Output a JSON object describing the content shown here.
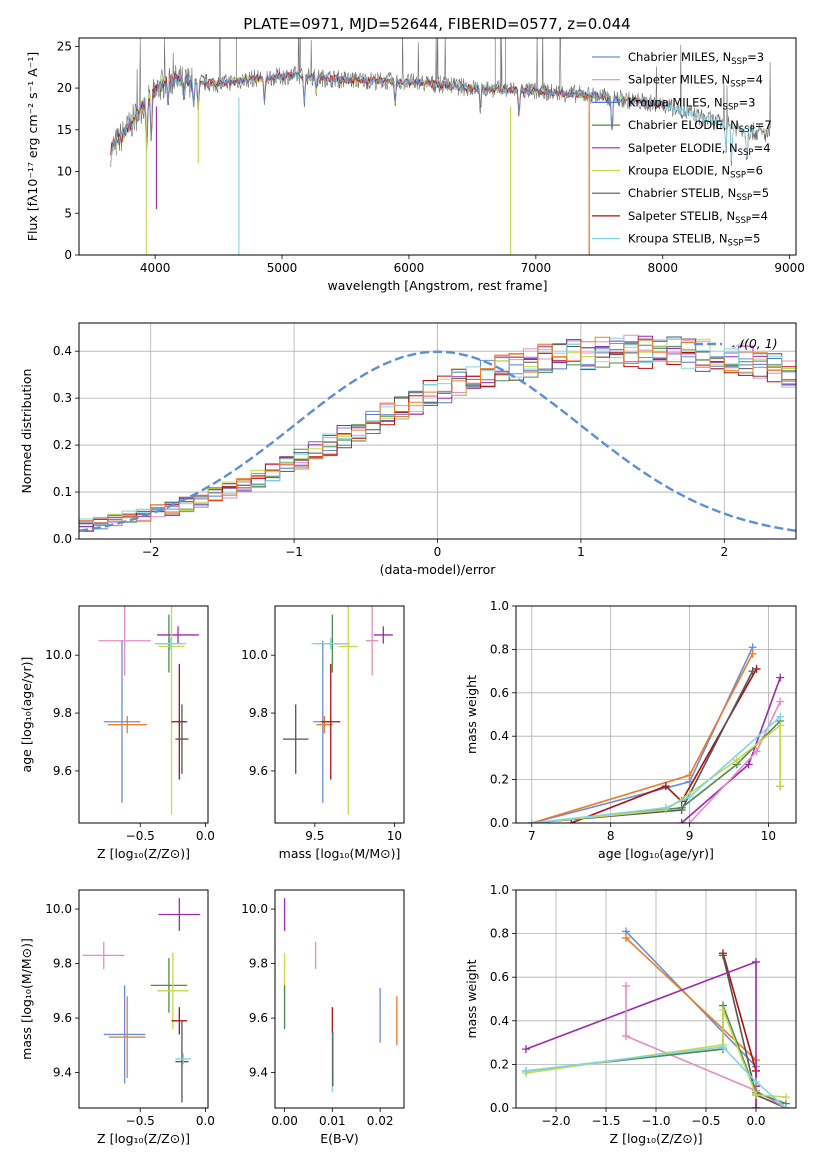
{
  "figure_title": "PLATE=0971, MJD=52644, FIBERID=0577, z=0.044",
  "colors": {
    "chabrier_miles": "#6a8fd6",
    "salpeter_miles": "#e58ec2",
    "kroupa_miles": "#5577cc",
    "chabrier_elodie": "#4f8a55",
    "salpeter_elodie": "#9b2ab0",
    "kroupa_elodie": "#c8d84a",
    "chabrier_stelib": "#555555",
    "salpeter_stelib": "#b01010",
    "kroupa_stelib": "#7ed6e6",
    "orange": "#ee7a2a",
    "gauss": "#5b8fd6"
  },
  "chart_data": [
    {
      "id": "spectrum",
      "type": "line",
      "title": "PLATE=0971, MJD=52644, FIBERID=0577, z=0.044",
      "xlabel": "wavelength [Angstrom, rest frame]",
      "ylabel": "Flux [fλ10⁻¹⁷ erg cm⁻² s⁻¹ A⁻¹]",
      "xlim": [
        3400,
        9050
      ],
      "ylim": [
        0,
        26
      ],
      "xticks": [
        4000,
        5000,
        6000,
        7000,
        8000,
        9000
      ],
      "yticks": [
        0,
        5,
        10,
        15,
        20,
        25
      ],
      "legend_position": "top-right",
      "legend": [
        {
          "label": "Chabrier MILES, N",
          "sub": "SSP",
          "suffix": "=3",
          "color_key": "chabrier_miles"
        },
        {
          "label": "Salpeter MILES, N",
          "sub": "SSP",
          "suffix": "=4",
          "color_key": "salpeter_miles"
        },
        {
          "label": "Kroupa MILES, N",
          "sub": "SSP",
          "suffix": "=3",
          "color_key": "kroupa_miles"
        },
        {
          "label": "Chabrier ELODIE, N",
          "sub": "SSP",
          "suffix": "=7",
          "color_key": "chabrier_elodie"
        },
        {
          "label": "Salpeter ELODIE, N",
          "sub": "SSP",
          "suffix": "=4",
          "color_key": "salpeter_elodie"
        },
        {
          "label": "Kroupa ELODIE, N",
          "sub": "SSP",
          "suffix": "=6",
          "color_key": "kroupa_elodie"
        },
        {
          "label": "Chabrier STELIB, N",
          "sub": "SSP",
          "suffix": "=5",
          "color_key": "chabrier_stelib"
        },
        {
          "label": "Salpeter STELIB, N",
          "sub": "SSP",
          "suffix": "=4",
          "color_key": "salpeter_stelib"
        },
        {
          "label": "Kroupa STELIB, N",
          "sub": "SSP",
          "suffix": "=5",
          "color_key": "kroupa_stelib"
        }
      ],
      "continuum": {
        "x": [
          3650,
          3800,
          3950,
          4100,
          4300,
          4500,
          4800,
          5100,
          5500,
          5900,
          6200,
          6500,
          6800,
          7100,
          7400,
          7700,
          8000,
          8200,
          8400,
          8600,
          8800
        ],
        "y": [
          12.5,
          15.5,
          19.0,
          21.0,
          20.8,
          20.5,
          21.2,
          21.5,
          21.0,
          20.8,
          20.5,
          20.0,
          19.8,
          19.5,
          19.2,
          18.6,
          18.0,
          17.0,
          16.0,
          15.2,
          14.5
        ]
      },
      "drops": [
        {
          "x": 3930,
          "y": 0,
          "color_key": "kroupa_elodie"
        },
        {
          "x": 4660,
          "y": 0,
          "color_key": "kroupa_stelib"
        },
        {
          "x": 6800,
          "y": 0,
          "color_key": "kroupa_elodie"
        },
        {
          "x": 7420,
          "y": 0,
          "color_key": "orange"
        },
        {
          "x": 4010,
          "y": 5.5,
          "color_key": "salpeter_elodie"
        },
        {
          "x": 4340,
          "y": 11.0,
          "color_key": "kroupa_elodie"
        }
      ]
    },
    {
      "id": "residuals",
      "type": "histogram",
      "xlabel": "(data-model)/error",
      "ylabel": "Normed distribution",
      "xlim": [
        -2.5,
        2.5
      ],
      "ylim": [
        0,
        0.46
      ],
      "xticks": [
        -2,
        -1,
        0,
        1,
        2
      ],
      "yticks": [
        0.0,
        0.1,
        0.2,
        0.3,
        0.4
      ],
      "grid": true,
      "legend_position": "top-right",
      "gaussian_label": "𝒩(0, 1)",
      "bin_edges_start": -2.5,
      "bin_width": 0.1,
      "base_values": [
        0.03,
        0.034,
        0.039,
        0.045,
        0.051,
        0.058,
        0.065,
        0.074,
        0.083,
        0.093,
        0.104,
        0.116,
        0.129,
        0.142,
        0.156,
        0.171,
        0.186,
        0.201,
        0.217,
        0.232,
        0.248,
        0.264,
        0.279,
        0.294,
        0.308,
        0.321,
        0.333,
        0.344,
        0.354,
        0.363,
        0.371,
        0.378,
        0.384,
        0.389,
        0.392,
        0.395,
        0.397,
        0.398,
        0.399,
        0.399,
        0.398,
        0.397,
        0.395,
        0.392,
        0.389,
        0.384,
        0.378,
        0.371,
        0.363,
        0.354,
        0.344,
        0.333,
        0.321,
        0.308,
        0.294,
        0.279,
        0.264,
        0.248,
        0.232,
        0.217,
        0.201,
        0.186,
        0.171,
        0.156,
        0.142,
        0.129,
        0.116,
        0.104,
        0.093,
        0.083,
        0.074,
        0.065,
        0.058,
        0.051,
        0.045,
        0.039,
        0.034,
        0.03,
        0.026,
        0.023,
        0.021,
        0.019,
        0.018,
        0.017,
        0.016,
        0.016,
        0.015,
        0.015,
        0.015,
        0.015,
        0.015,
        0.015,
        0.015,
        0.015,
        0.015,
        0.015,
        0.015,
        0.015,
        0.015,
        0.015
      ]
    },
    {
      "id": "age_vs_Z",
      "type": "errorbar",
      "xlabel": "Z [log₁₀(Z/Z⊙)]",
      "ylabel": "age  [log₁₀(age/yr)]",
      "xlim": [
        -0.97,
        0.02
      ],
      "ylim": [
        9.42,
        10.17
      ],
      "xticks": [
        -0.5,
        0.0
      ],
      "xticklabels": [
        "−0.5",
        "0.0"
      ],
      "yticks": [
        9.6,
        9.8,
        10.0
      ],
      "points": [
        {
          "x": -0.62,
          "y": 10.05,
          "ex": 0.2,
          "ey": 0.12,
          "color_key": "salpeter_miles"
        },
        {
          "x": -0.64,
          "y": 9.77,
          "ex": 0.14,
          "ey": 0.28,
          "color_key": "chabrier_miles"
        },
        {
          "x": -0.6,
          "y": 9.76,
          "ex": 0.15,
          "ey": 0.03,
          "color_key": "orange"
        },
        {
          "x": -0.28,
          "y": 10.04,
          "ex": 0.1,
          "ey": 0.1,
          "color_key": "chabrier_elodie"
        },
        {
          "x": -0.21,
          "y": 10.07,
          "ex": 0.16,
          "ey": 0.03,
          "color_key": "salpeter_elodie"
        },
        {
          "x": -0.26,
          "y": 10.03,
          "ex": 0.1,
          "ey": 0.58,
          "color_key": "kroupa_elodie"
        },
        {
          "x": -0.2,
          "y": 9.77,
          "ex": 0.06,
          "ey": 0.2,
          "color_key": "salpeter_stelib"
        },
        {
          "x": -0.18,
          "y": 9.71,
          "ex": 0.05,
          "ey": 0.12,
          "color_key": "chabrier_stelib"
        },
        {
          "x": -0.27,
          "y": 10.04,
          "ex": 0.12,
          "ey": 0.02,
          "color_key": "kroupa_stelib"
        }
      ]
    },
    {
      "id": "age_vs_mass",
      "type": "errorbar",
      "xlabel": "mass [log₁₀(M/M⊙)]",
      "xlim": [
        9.25,
        10.06
      ],
      "ylim": [
        9.42,
        10.17
      ],
      "xticks": [
        9.5,
        10.0
      ],
      "yticks": [
        9.6,
        9.8,
        10.0
      ],
      "points": [
        {
          "x": 9.86,
          "y": 10.05,
          "ex": 0.04,
          "ey": 0.12,
          "color_key": "salpeter_miles"
        },
        {
          "x": 9.55,
          "y": 9.77,
          "ex": 0.06,
          "ey": 0.28,
          "color_key": "chabrier_miles"
        },
        {
          "x": 9.56,
          "y": 9.76,
          "ex": 0.05,
          "ey": 0.03,
          "color_key": "orange"
        },
        {
          "x": 9.61,
          "y": 10.04,
          "ex": 0.1,
          "ey": 0.1,
          "color_key": "chabrier_elodie"
        },
        {
          "x": 9.93,
          "y": 10.07,
          "ex": 0.06,
          "ey": 0.03,
          "color_key": "salpeter_elodie"
        },
        {
          "x": 9.71,
          "y": 10.03,
          "ex": 0.06,
          "ey": 0.58,
          "color_key": "kroupa_elodie"
        },
        {
          "x": 9.6,
          "y": 9.77,
          "ex": 0.06,
          "ey": 0.2,
          "color_key": "salpeter_stelib"
        },
        {
          "x": 9.38,
          "y": 9.71,
          "ex": 0.08,
          "ey": 0.12,
          "color_key": "chabrier_stelib"
        },
        {
          "x": 9.6,
          "y": 10.04,
          "ex": 0.12,
          "ey": 0.02,
          "color_key": "kroupa_stelib"
        }
      ]
    },
    {
      "id": "weight_vs_age",
      "type": "line",
      "xlabel": "age  [log₁₀(age/yr)]",
      "ylabel": "mass weight",
      "xlim": [
        6.8,
        10.35
      ],
      "ylim": [
        0,
        1.0
      ],
      "xticks": [
        7,
        8,
        9,
        10
      ],
      "yticks": [
        0.0,
        0.2,
        0.4,
        0.6,
        0.8,
        1.0
      ],
      "grid": true,
      "series": [
        {
          "color_key": "chabrier_miles",
          "x": [
            7.0,
            9.0,
            9.8
          ],
          "y": [
            0.0,
            0.19,
            0.81
          ]
        },
        {
          "color_key": "orange",
          "x": [
            7.0,
            9.0,
            9.8
          ],
          "y": [
            0.0,
            0.22,
            0.78
          ]
        },
        {
          "color_key": "salpeter_stelib",
          "x": [
            7.5,
            8.7,
            8.9,
            9.85
          ],
          "y": [
            0.0,
            0.17,
            0.1,
            0.71
          ]
        },
        {
          "color_key": "chabrier_stelib",
          "x": [
            7.0,
            8.9,
            9.8
          ],
          "y": [
            0.0,
            0.06,
            0.7
          ]
        },
        {
          "color_key": "salpeter_elodie",
          "x": [
            8.9,
            9.75,
            10.15
          ],
          "y": [
            0.0,
            0.27,
            0.67
          ]
        },
        {
          "color_key": "salpeter_miles",
          "x": [
            9.0,
            9.85,
            10.15
          ],
          "y": [
            0.0,
            0.33,
            0.56
          ]
        },
        {
          "color_key": "chabrier_elodie",
          "x": [
            7.0,
            8.9,
            9.6,
            10.15,
            10.15
          ],
          "y": [
            0.0,
            0.07,
            0.27,
            0.47,
            0.17
          ]
        },
        {
          "color_key": "kroupa_elodie",
          "x": [
            7.0,
            8.7,
            9.6,
            10.15,
            10.15
          ],
          "y": [
            0.0,
            0.06,
            0.29,
            0.45,
            0.17
          ]
        },
        {
          "color_key": "kroupa_stelib",
          "x": [
            7.0,
            8.7,
            9.0,
            10.15
          ],
          "y": [
            0.0,
            0.07,
            0.12,
            0.49
          ]
        }
      ]
    },
    {
      "id": "mass_vs_Z",
      "type": "errorbar",
      "xlabel": "Z [log₁₀(Z/Z⊙)]",
      "ylabel": "mass [log₁₀(M/M⊙)]",
      "xlim": [
        -0.97,
        0.02
      ],
      "ylim": [
        9.27,
        10.07
      ],
      "xticks": [
        -0.5,
        0.0
      ],
      "xticklabels": [
        "−0.5",
        "0.0"
      ],
      "yticks": [
        9.4,
        9.6,
        9.8,
        10.0
      ],
      "points": [
        {
          "x": -0.78,
          "y": 9.83,
          "ex": 0.16,
          "ey": 0.05,
          "color_key": "salpeter_miles"
        },
        {
          "x": -0.62,
          "y": 9.54,
          "ex": 0.16,
          "ey": 0.18,
          "color_key": "chabrier_miles"
        },
        {
          "x": -0.6,
          "y": 9.53,
          "ex": 0.14,
          "ey": 0.15,
          "color_key": "orange"
        },
        {
          "x": -0.28,
          "y": 9.72,
          "ex": 0.14,
          "ey": 0.1,
          "color_key": "chabrier_elodie"
        },
        {
          "x": -0.2,
          "y": 9.98,
          "ex": 0.16,
          "ey": 0.06,
          "color_key": "salpeter_elodie"
        },
        {
          "x": -0.25,
          "y": 9.7,
          "ex": 0.12,
          "ey": 0.14,
          "color_key": "kroupa_elodie"
        },
        {
          "x": -0.2,
          "y": 9.59,
          "ex": 0.06,
          "ey": 0.05,
          "color_key": "salpeter_stelib"
        },
        {
          "x": -0.18,
          "y": 9.44,
          "ex": 0.05,
          "ey": 0.15,
          "color_key": "chabrier_stelib"
        },
        {
          "x": -0.17,
          "y": 9.45,
          "ex": 0.06,
          "ey": 0.02,
          "color_key": "kroupa_stelib"
        }
      ]
    },
    {
      "id": "mass_vs_ebv",
      "type": "errorbar",
      "xlabel": "E(B-V)",
      "xlim": [
        -0.002,
        0.025
      ],
      "ylim": [
        9.27,
        10.07
      ],
      "xticks": [
        0.0,
        0.01,
        0.02
      ],
      "xticklabels": [
        "0.00",
        "0.01",
        "0.02"
      ],
      "yticks": [
        9.4,
        9.6,
        9.8,
        10.0
      ],
      "points": [
        {
          "x": 0.0,
          "y": 9.98,
          "ex": 0,
          "ey": 0.06,
          "color_key": "salpeter_elodie"
        },
        {
          "x": 0.0,
          "y": 9.7,
          "ex": 0,
          "ey": 0.14,
          "color_key": "kroupa_elodie"
        },
        {
          "x": 0.0,
          "y": 9.64,
          "ex": 0,
          "ey": 0.08,
          "color_key": "chabrier_elodie"
        },
        {
          "x": 0.0065,
          "y": 9.83,
          "ex": 0,
          "ey": 0.05,
          "color_key": "salpeter_miles"
        },
        {
          "x": 0.01,
          "y": 9.59,
          "ex": 0,
          "ey": 0.05,
          "color_key": "salpeter_stelib"
        },
        {
          "x": 0.01,
          "y": 9.44,
          "ex": 0,
          "ey": 0.11,
          "color_key": "kroupa_stelib"
        },
        {
          "x": 0.0101,
          "y": 9.45,
          "ex": 0,
          "ey": 0.1,
          "color_key": "chabrier_stelib"
        },
        {
          "x": 0.02,
          "y": 9.61,
          "ex": 0,
          "ey": 0.1,
          "color_key": "chabrier_miles"
        },
        {
          "x": 0.0235,
          "y": 9.59,
          "ex": 0,
          "ey": 0.09,
          "color_key": "orange"
        }
      ]
    },
    {
      "id": "weight_vs_Z",
      "type": "line",
      "xlabel": "Z [log₁₀(Z/Z⊙)]",
      "ylabel": "mass weight",
      "xlim": [
        -2.4,
        0.4
      ],
      "ylim": [
        0,
        1.0
      ],
      "xticks": [
        -2.0,
        -1.5,
        -1.0,
        -0.5,
        0.0
      ],
      "xticklabels": [
        "−2.0",
        "−1.5",
        "−1.0",
        "−0.5",
        "0.0"
      ],
      "yticks": [
        0.0,
        0.2,
        0.4,
        0.6,
        0.8,
        1.0
      ],
      "grid": true,
      "series": [
        {
          "color_key": "chabrier_miles",
          "x": [
            -1.3,
            0.0,
            0.0
          ],
          "y": [
            0.81,
            0.19,
            0.0
          ]
        },
        {
          "color_key": "orange",
          "x": [
            -1.3,
            0.0,
            0.0
          ],
          "y": [
            0.78,
            0.22,
            0.0
          ]
        },
        {
          "color_key": "salpeter_stelib",
          "x": [
            -0.33,
            0.0,
            0.0
          ],
          "y": [
            0.71,
            0.17,
            0.1
          ]
        },
        {
          "color_key": "chabrier_stelib",
          "x": [
            -0.33,
            0.0,
            0.3
          ],
          "y": [
            0.7,
            0.06,
            0.0
          ]
        },
        {
          "color_key": "salpeter_elodie",
          "x": [
            -2.3,
            0.0,
            0.0
          ],
          "y": [
            0.27,
            0.67,
            0.0
          ]
        },
        {
          "color_key": "salpeter_miles",
          "x": [
            -1.3,
            -1.3,
            0.0,
            0.3
          ],
          "y": [
            0.56,
            0.33,
            0.08,
            0.0
          ]
        },
        {
          "color_key": "chabrier_elodie",
          "x": [
            -2.3,
            -0.33,
            -0.33,
            0.0,
            0.3
          ],
          "y": [
            0.17,
            0.27,
            0.47,
            0.07,
            0.02
          ]
        },
        {
          "color_key": "kroupa_elodie",
          "x": [
            -2.3,
            -0.33,
            -0.33,
            0.0,
            0.3
          ],
          "y": [
            0.16,
            0.29,
            0.45,
            0.06,
            0.05
          ]
        },
        {
          "color_key": "kroupa_stelib",
          "x": [
            -2.3,
            -0.33,
            0.0,
            0.3
          ],
          "y": [
            0.17,
            0.28,
            0.12,
            0.0
          ]
        }
      ]
    }
  ]
}
